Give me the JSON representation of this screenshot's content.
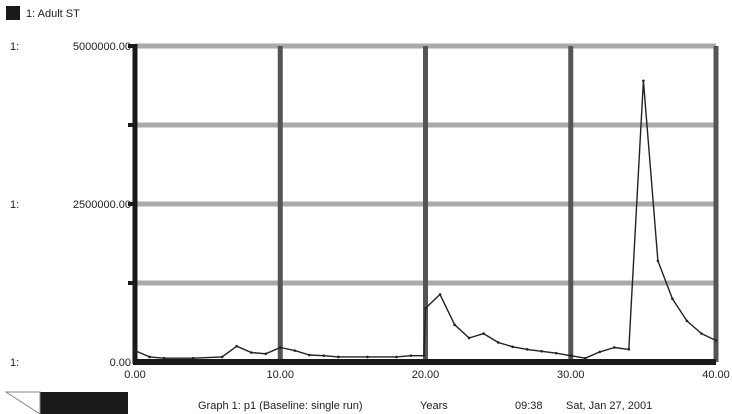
{
  "legend": {
    "label": "1: Adult ST",
    "swatch_color": "#1a1a1a"
  },
  "axis_prefix": "1:",
  "footer": {
    "graph_caption": "Graph 1: p1 (Baseline: single run)",
    "x_unit": "Years",
    "time": "09:38",
    "date": "Sat, Jan 27, 2001"
  },
  "colors": {
    "grid_horizontal": "#aaaaaa",
    "grid_vertical": "#555555",
    "axis": "#1a1a1a",
    "line": "#222222"
  },
  "chart_data": {
    "type": "line",
    "xlim": [
      0,
      40
    ],
    "ylim": [
      0,
      5000000
    ],
    "x_ticks": [
      0,
      10,
      20,
      30,
      40
    ],
    "x_tick_labels": [
      "0.00",
      "10.00",
      "20.00",
      "30.00",
      "40.00"
    ],
    "y_tick_labels": [
      {
        "value": 5000000,
        "label": "5000000.00"
      },
      {
        "value": 2500000,
        "label": "2500000.00"
      },
      {
        "value": 0,
        "label": "0.00"
      }
    ],
    "y_grid": [
      1250000,
      2500000,
      3750000,
      5000000
    ],
    "grid": true,
    "series": [
      {
        "x": [
          0,
          1,
          2,
          4,
          6,
          7,
          8,
          9,
          10,
          11,
          12,
          13,
          14,
          16,
          18,
          19,
          19.9,
          20,
          21,
          22,
          23,
          24,
          25,
          26,
          27,
          28,
          29,
          30,
          31,
          32,
          33,
          34,
          35,
          36,
          37,
          38,
          39,
          40
        ],
        "y": [
          180000,
          80000,
          60000,
          60000,
          80000,
          250000,
          150000,
          130000,
          230000,
          180000,
          110000,
          100000,
          80000,
          80000,
          80000,
          100000,
          100000,
          850000,
          1070000,
          590000,
          380000,
          450000,
          310000,
          240000,
          200000,
          170000,
          140000,
          100000,
          60000,
          160000,
          230000,
          200000,
          4450000,
          1600000,
          1000000,
          650000,
          450000,
          340000
        ]
      }
    ]
  }
}
